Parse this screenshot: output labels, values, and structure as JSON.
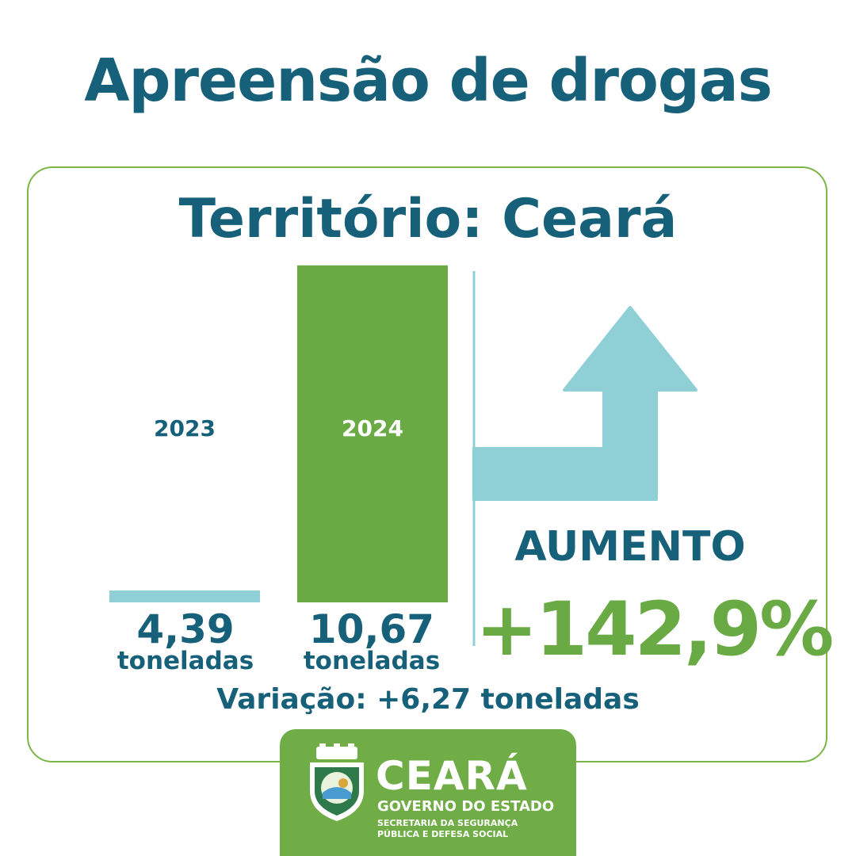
{
  "title": "Apreensão de drogas",
  "subtitle": "Território: Ceará",
  "chart_data": {
    "type": "bar",
    "categories": [
      "2023",
      "2024"
    ],
    "values": [
      4.39,
      10.67
    ],
    "value_labels": [
      "4,39",
      "10,67"
    ],
    "unit": "toneladas",
    "colors": [
      "#8fd0d6",
      "#6aaa45"
    ],
    "category_label_color": [
      "#17607a",
      "#ffffff"
    ]
  },
  "trend": {
    "label": "AUMENTO",
    "percent": "+142,9%",
    "arrow_color": "#8fd0d6"
  },
  "variation": "Variação: +6,27 toneladas",
  "logo": {
    "name": "CEARÁ",
    "subtitle": "GOVERNO DO ESTADO",
    "department_line1": "SECRETARIA DA SEGURANÇA",
    "department_line2": "PÚBLICA E DEFESA SOCIAL"
  },
  "colors": {
    "primary_text": "#17607a",
    "accent_green": "#70ad47",
    "light_blue": "#8fd0d6"
  }
}
